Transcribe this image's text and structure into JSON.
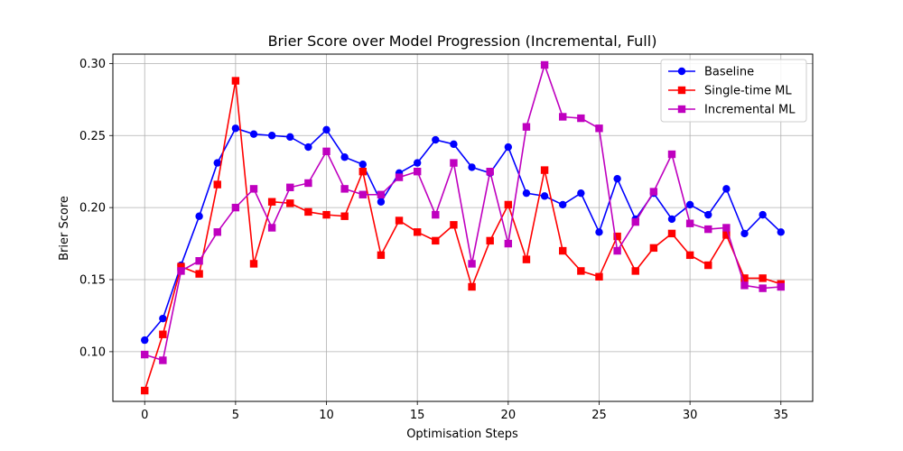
{
  "chart_data": {
    "type": "line",
    "title": "Brier Score over Model Progression (Incremental, Full)",
    "xlabel": "Optimisation Steps",
    "ylabel": "Brier Score",
    "xlim": [
      -1.75,
      36.75
    ],
    "ylim": [
      0.0655,
      0.3065
    ],
    "xticks": [
      0,
      5,
      10,
      15,
      20,
      25,
      30,
      35
    ],
    "yticks": [
      0.1,
      0.15,
      0.2,
      0.25,
      0.3
    ],
    "xtick_labels": [
      "0",
      "5",
      "10",
      "15",
      "20",
      "25",
      "30",
      "35"
    ],
    "ytick_labels": [
      "0.10",
      "0.15",
      "0.20",
      "0.25",
      "0.30"
    ],
    "grid": true,
    "legend_position": "top-right",
    "x": [
      0,
      1,
      2,
      3,
      4,
      5,
      6,
      7,
      8,
      9,
      10,
      11,
      12,
      13,
      14,
      15,
      16,
      17,
      18,
      19,
      20,
      21,
      22,
      23,
      24,
      25,
      26,
      27,
      28,
      29,
      30,
      31,
      32,
      33,
      34,
      35
    ],
    "series": [
      {
        "name": "Baseline",
        "color": "#0000ff",
        "marker": "circle",
        "values": [
          0.108,
          0.123,
          0.16,
          0.194,
          0.231,
          0.255,
          0.251,
          0.25,
          0.249,
          0.242,
          0.254,
          0.235,
          0.23,
          0.204,
          0.224,
          0.231,
          0.247,
          0.244,
          0.228,
          0.224,
          0.242,
          0.21,
          0.208,
          0.202,
          0.21,
          0.183,
          0.22,
          0.192,
          0.21,
          0.192,
          0.202,
          0.195,
          0.213,
          0.182,
          0.195,
          0.183
        ]
      },
      {
        "name": "Single-time ML",
        "color": "#ff0000",
        "marker": "square",
        "values": [
          0.073,
          0.112,
          0.159,
          0.154,
          0.216,
          0.288,
          0.161,
          0.204,
          0.203,
          0.197,
          0.195,
          0.194,
          0.225,
          0.167,
          0.191,
          0.183,
          0.177,
          0.188,
          0.145,
          0.177,
          0.202,
          0.164,
          0.226,
          0.17,
          0.156,
          0.152,
          0.18,
          0.156,
          0.172,
          0.182,
          0.167,
          0.16,
          0.181,
          0.151,
          0.151,
          0.147
        ]
      },
      {
        "name": "Incremental ML",
        "color": "#bf00bf",
        "marker": "square",
        "values": [
          0.098,
          0.094,
          0.156,
          0.163,
          0.183,
          0.2,
          0.213,
          0.186,
          0.214,
          0.217,
          0.239,
          0.213,
          0.209,
          0.209,
          0.221,
          0.225,
          0.195,
          0.231,
          0.161,
          0.225,
          0.175,
          0.256,
          0.299,
          0.263,
          0.262,
          0.255,
          0.17,
          0.19,
          0.211,
          0.237,
          0.189,
          0.185,
          0.186,
          0.146,
          0.144,
          0.145
        ]
      }
    ]
  }
}
